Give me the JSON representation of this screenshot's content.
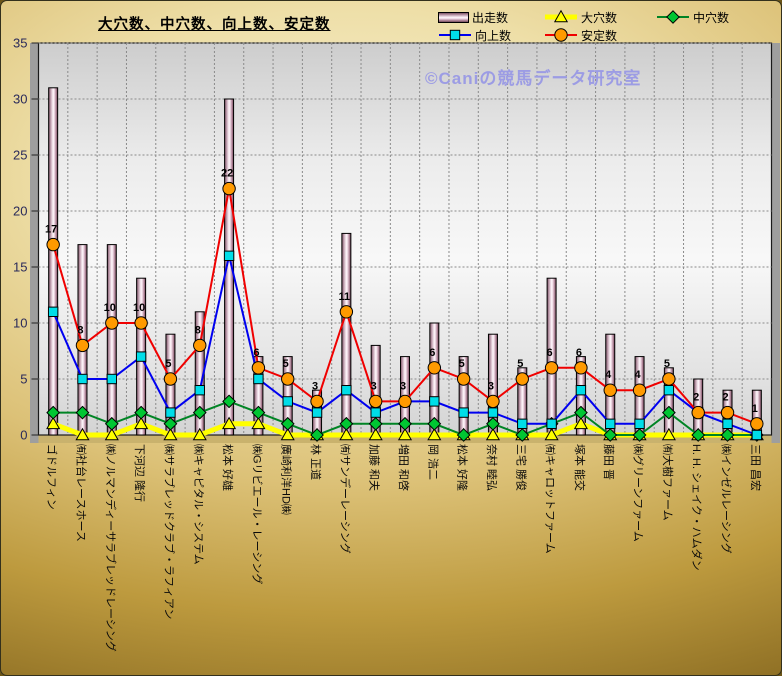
{
  "title": "大穴数、中穴数、向上数、安定数",
  "watermark": "©Caniの競馬データ研究室",
  "legend": [
    {
      "label": "出走数",
      "series": 0
    },
    {
      "label": "大穴数",
      "series": 1
    },
    {
      "label": "中穴数",
      "series": 2
    },
    {
      "label": "向上数",
      "series": 3
    },
    {
      "label": "安定数",
      "series": 4
    }
  ],
  "colors": {
    "background_gold": "#c9a94e",
    "plot_background": "#ececec",
    "plot_wall_shadow": "#9e9e9e",
    "plot_floor": "#c9b26d",
    "watermark_text": "#9c9ce4",
    "y_axis_text": "#2a2a5a",
    "bar_edge": "#7d5565",
    "bar_center": "#fff8fc"
  },
  "y_axis": {
    "tick_labels": [
      "0",
      "5",
      "10",
      "15",
      "20",
      "25",
      "30",
      "35"
    ]
  },
  "chart_data": {
    "type": "bar",
    "subtype": "bar-line-combo",
    "title": "大穴数、中穴数、向上数、安定数",
    "xlabel": "",
    "ylabel": "",
    "ylim": [
      0,
      35
    ],
    "ytick_step": 5,
    "grid": "dotted horizontal and vertical",
    "legend_position": "top-right, 2 rows",
    "categories": [
      "ゴドルフィン",
      "㈲社台レースホース",
      "㈱ノルマンディーサラブレッドレーシング",
      "下河辺 隆行",
      "㈱サラブレッドクラブ・ラフィアン",
      "㈱キャピタル・システム",
      "松本 好雄",
      "㈱Gリビエール・レーシング",
      "廣崎利洋HD㈱",
      "林 正道",
      "㈲サンデーレーシング",
      "加藤 和夫",
      "増田 和啓",
      "岡 浩二",
      "松本 好隆",
      "奈村 睦弘",
      "三宅 勝俊",
      "㈲キャロットファーム",
      "塚本 能交",
      "藤田 晋",
      "㈱グリーンファーム",
      "㈲大樹ファーム",
      "H. H. シェイク・ハムダン",
      "㈱インゼルレーシング",
      "三田 昌宏"
    ],
    "series": [
      {
        "name": "出走数",
        "type": "bar",
        "marker": "none",
        "values": [
          31,
          17,
          17,
          14,
          9,
          11,
          30,
          7,
          7,
          4,
          18,
          8,
          7,
          10,
          7,
          9,
          6,
          14,
          7,
          9,
          7,
          6,
          5,
          4,
          4
        ]
      },
      {
        "name": "大穴数",
        "type": "line",
        "marker": "triangle",
        "line_color": "#ffff00",
        "marker_color": "#ffff00",
        "line_width": 5,
        "values": [
          1,
          0,
          0,
          1,
          0,
          0,
          1,
          1,
          0,
          0,
          0,
          0,
          0,
          0,
          0,
          0,
          0,
          0,
          1,
          0,
          0,
          0,
          0,
          0,
          0
        ]
      },
      {
        "name": "中穴数",
        "type": "line",
        "marker": "diamond",
        "line_color": "#008424",
        "marker_color": "#00c632",
        "line_width": 2,
        "values": [
          2,
          2,
          1,
          2,
          1,
          2,
          3,
          2,
          1,
          0,
          1,
          1,
          1,
          1,
          0,
          1,
          0,
          1,
          2,
          0,
          0,
          2,
          0,
          0,
          0
        ]
      },
      {
        "name": "向上数",
        "type": "line",
        "marker": "square",
        "line_color": "#0000f0",
        "marker_color": "#00dde8",
        "line_width": 2,
        "values": [
          11,
          5,
          5,
          7,
          2,
          4,
          16,
          5,
          3,
          2,
          4,
          2,
          3,
          3,
          2,
          2,
          1,
          1,
          4,
          1,
          1,
          4,
          2,
          1,
          0
        ]
      },
      {
        "name": "安定数",
        "type": "line",
        "marker": "circle",
        "data_labels": true,
        "line_color": "#f00000",
        "marker_color": "#ff9a00",
        "line_width": 2,
        "values": [
          17,
          8,
          10,
          10,
          5,
          8,
          22,
          6,
          5,
          3,
          11,
          3,
          3,
          6,
          5,
          3,
          5,
          6,
          6,
          4,
          4,
          5,
          2,
          2,
          1
        ]
      }
    ]
  }
}
